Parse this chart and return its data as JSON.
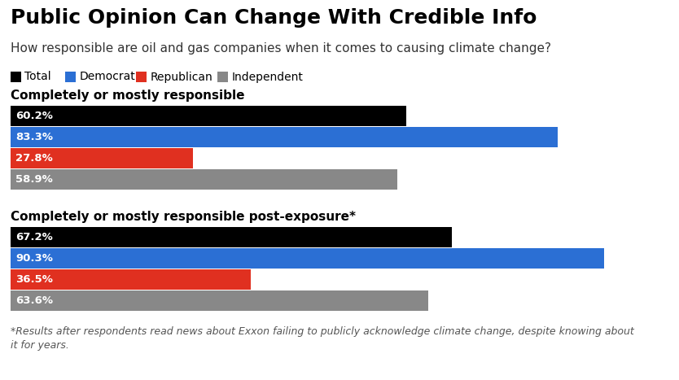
{
  "title": "Public Opinion Can Change With Credible Info",
  "subtitle": "How responsible are oil and gas companies when it comes to causing climate change?",
  "footnote": "*Results after respondents read news about Exxon failing to publicly acknowledge climate change, despite knowing about\nit for years.",
  "legend": [
    "Total",
    "Democrat",
    "Republican",
    "Independent"
  ],
  "legend_colors": [
    "#000000",
    "#2b6fd4",
    "#e03020",
    "#888888"
  ],
  "group1_label": "Completely or mostly responsible",
  "group2_label": "Completely or mostly responsible post-exposure*",
  "group1_values": [
    60.2,
    83.3,
    27.8,
    58.9
  ],
  "group2_values": [
    67.2,
    90.3,
    36.5,
    63.6
  ],
  "bar_colors": [
    "#000000",
    "#2b6fd4",
    "#e03020",
    "#888888"
  ],
  "max_value": 100,
  "background_color": "#ffffff",
  "title_fontsize": 18,
  "subtitle_fontsize": 11,
  "group_label_fontsize": 11,
  "label_fontsize": 9.5,
  "footnote_fontsize": 9
}
